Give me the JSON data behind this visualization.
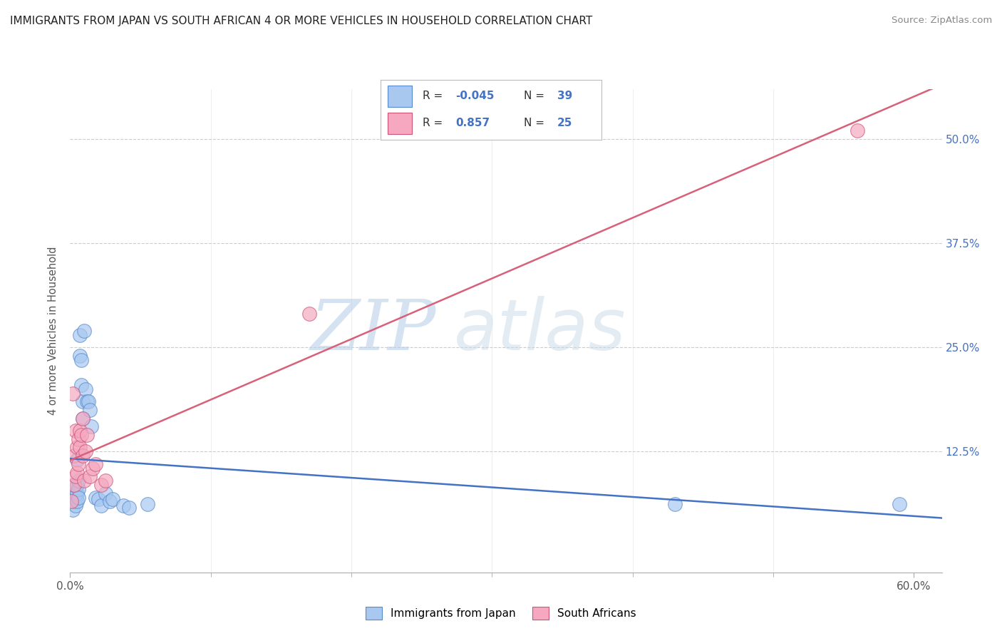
{
  "title": "IMMIGRANTS FROM JAPAN VS SOUTH AFRICAN 4 OR MORE VEHICLES IN HOUSEHOLD CORRELATION CHART",
  "source": "Source: ZipAtlas.com",
  "ylabel": "4 or more Vehicles in Household",
  "xlim": [
    0.0,
    0.62
  ],
  "ylim": [
    -0.02,
    0.56
  ],
  "xtick_vals": [
    0.0,
    0.6
  ],
  "xtick_labels": [
    "0.0%",
    "60.0%"
  ],
  "xtick_minor_vals": [
    0.1,
    0.2,
    0.3,
    0.4,
    0.5
  ],
  "ytick_vals": [
    0.125,
    0.25,
    0.375,
    0.5
  ],
  "ytick_labels": [
    "12.5%",
    "25.0%",
    "37.5%",
    "50.0%"
  ],
  "japan_R": "-0.045",
  "japan_N": "39",
  "sa_R": "0.857",
  "sa_N": "25",
  "japan_color": "#a8c8f0",
  "japan_edge": "#5588cc",
  "sa_color": "#f5a8c0",
  "sa_edge": "#cc5577",
  "japan_line_color": "#4472c4",
  "sa_line_color": "#d9607a",
  "watermark_color": "#ccddf0",
  "background_color": "#ffffff",
  "grid_color": "#cccccc",
  "japan_x": [
    0.001,
    0.002,
    0.002,
    0.003,
    0.003,
    0.003,
    0.004,
    0.004,
    0.004,
    0.005,
    0.005,
    0.005,
    0.006,
    0.006,
    0.006,
    0.007,
    0.007,
    0.008,
    0.008,
    0.009,
    0.009,
    0.01,
    0.011,
    0.012,
    0.013,
    0.014,
    0.015,
    0.018,
    0.02,
    0.022,
    0.025,
    0.028,
    0.03,
    0.038,
    0.042,
    0.055,
    0.43,
    0.59,
    0.005
  ],
  "japan_y": [
    0.065,
    0.07,
    0.055,
    0.075,
    0.065,
    0.085,
    0.07,
    0.075,
    0.06,
    0.075,
    0.065,
    0.085,
    0.08,
    0.07,
    0.09,
    0.265,
    0.24,
    0.205,
    0.235,
    0.185,
    0.165,
    0.27,
    0.2,
    0.185,
    0.185,
    0.175,
    0.155,
    0.07,
    0.068,
    0.06,
    0.075,
    0.065,
    0.068,
    0.06,
    0.058,
    0.062,
    0.062,
    0.062,
    0.115
  ],
  "sa_x": [
    0.001,
    0.002,
    0.003,
    0.003,
    0.004,
    0.004,
    0.005,
    0.005,
    0.006,
    0.006,
    0.007,
    0.007,
    0.008,
    0.009,
    0.009,
    0.01,
    0.011,
    0.012,
    0.014,
    0.016,
    0.018,
    0.022,
    0.025,
    0.17,
    0.56
  ],
  "sa_y": [
    0.065,
    0.195,
    0.085,
    0.12,
    0.095,
    0.15,
    0.1,
    0.13,
    0.11,
    0.14,
    0.13,
    0.15,
    0.145,
    0.165,
    0.12,
    0.09,
    0.125,
    0.145,
    0.095,
    0.105,
    0.11,
    0.085,
    0.09,
    0.29,
    0.51
  ]
}
